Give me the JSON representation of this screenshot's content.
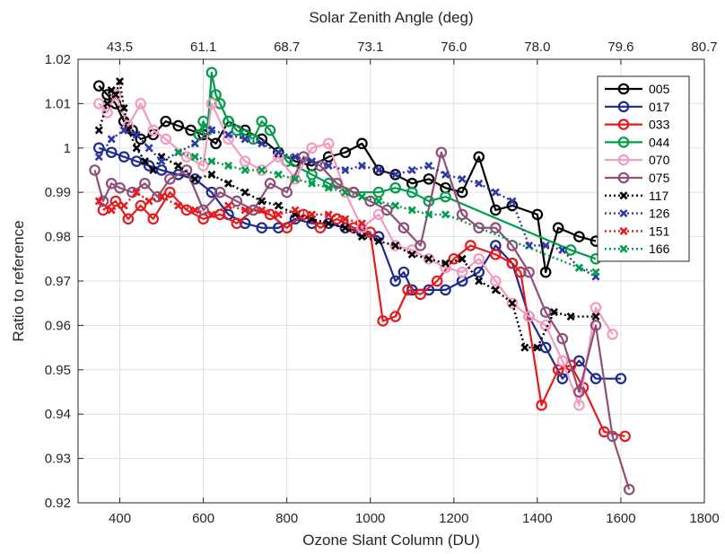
{
  "chart_data": {
    "type": "line",
    "xlabel": "Ozone Slant Column (DU)",
    "ylabel": "Ratio to reference",
    "top_xlabel": "Solar Zenith Angle (deg)",
    "xlim": [
      300,
      1800
    ],
    "ylim": [
      0.92,
      1.02
    ],
    "xticks": [
      400,
      600,
      800,
      1000,
      1200,
      1400,
      1600,
      1800
    ],
    "yticks": [
      0.92,
      0.93,
      0.94,
      0.95,
      0.96,
      0.97,
      0.98,
      0.99,
      1,
      1.01,
      1.02
    ],
    "ytick_labels": [
      "0.92",
      "0.93",
      "0.94",
      "0.95",
      "0.96",
      "0.97",
      "0.98",
      "0.99",
      "1",
      "1.01",
      "1.02"
    ],
    "top_ticks": [
      {
        "x": 400,
        "label": "43.5"
      },
      {
        "x": 600,
        "label": "61.1"
      },
      {
        "x": 800,
        "label": "68.7"
      },
      {
        "x": 1000,
        "label": "73.1"
      },
      {
        "x": 1200,
        "label": "76.0"
      },
      {
        "x": 1400,
        "label": "78.0"
      },
      {
        "x": 1600,
        "label": "79.6"
      },
      {
        "x": 1800,
        "label": "80.7"
      }
    ],
    "grid": true,
    "legend_position": "top-right",
    "series": [
      {
        "name": "005",
        "color": "#000000",
        "marker": "o",
        "line": "solid",
        "x": [
          350,
          370,
          390,
          410,
          430,
          450,
          480,
          510,
          540,
          570,
          600,
          630,
          660,
          700,
          740,
          780,
          820,
          860,
          900,
          940,
          980,
          1020,
          1060,
          1100,
          1140,
          1180,
          1220,
          1260,
          1300,
          1340,
          1400,
          1420,
          1450,
          1500,
          1540
        ],
        "y": [
          1.014,
          1.012,
          1.01,
          1.006,
          1.004,
          1.002,
          1.003,
          1.006,
          1.005,
          1.004,
          1.003,
          1.001,
          1.006,
          1.004,
          1.002,
          0.999,
          0.997,
          0.996,
          0.998,
          0.999,
          1.001,
          0.995,
          0.994,
          0.992,
          0.993,
          0.991,
          0.99,
          0.998,
          0.986,
          0.987,
          0.985,
          0.972,
          0.982,
          0.98,
          0.979
        ]
      },
      {
        "name": "017",
        "color": "#1f2a8f",
        "marker": "o",
        "line": "solid",
        "x": [
          350,
          380,
          410,
          440,
          470,
          500,
          540,
          580,
          620,
          660,
          700,
          740,
          780,
          820,
          860,
          900,
          940,
          980,
          1020,
          1060,
          1080,
          1100,
          1140,
          1180,
          1220,
          1260,
          1300,
          1340,
          1380,
          1420,
          1460,
          1500,
          1540,
          1600
        ],
        "y": [
          1.0,
          0.999,
          0.998,
          0.997,
          0.996,
          0.995,
          0.994,
          0.993,
          0.99,
          0.985,
          0.983,
          0.982,
          0.982,
          0.984,
          0.983,
          0.983,
          0.982,
          0.981,
          0.98,
          0.97,
          0.972,
          0.968,
          0.968,
          0.968,
          0.97,
          0.972,
          0.978,
          0.974,
          0.962,
          0.955,
          0.948,
          0.952,
          0.948,
          0.948
        ]
      },
      {
        "name": "033",
        "color": "#e41a1c",
        "marker": "o",
        "line": "solid",
        "x": [
          360,
          390,
          420,
          450,
          480,
          520,
          560,
          600,
          640,
          680,
          720,
          760,
          800,
          840,
          880,
          920,
          960,
          1000,
          1030,
          1060,
          1090,
          1120,
          1160,
          1200,
          1240,
          1300,
          1340,
          1360,
          1410,
          1450,
          1480,
          1510,
          1560,
          1610
        ],
        "y": [
          0.986,
          0.988,
          0.984,
          0.987,
          0.984,
          0.99,
          0.986,
          0.984,
          0.985,
          0.983,
          0.986,
          0.985,
          0.982,
          0.985,
          0.982,
          0.984,
          0.982,
          0.981,
          0.961,
          0.962,
          0.968,
          0.967,
          0.97,
          0.975,
          0.978,
          0.976,
          0.974,
          0.972,
          0.942,
          0.95,
          0.951,
          0.946,
          0.936,
          0.935
        ]
      },
      {
        "name": "044",
        "color": "#009e4a",
        "marker": "o",
        "line": "solid",
        "x": [
          590,
          600,
          610,
          620,
          630,
          640,
          660,
          680,
          700,
          720,
          740,
          760,
          800,
          860,
          900,
          960,
          1020,
          1060,
          1100,
          1140,
          1180,
          1480,
          1540
        ],
        "y": [
          1.003,
          1.006,
          1.004,
          1.017,
          1.012,
          1.01,
          1.006,
          1.004,
          1.003,
          1.002,
          1.006,
          1.004,
          0.997,
          0.994,
          0.992,
          0.99,
          0.99,
          0.991,
          0.99,
          0.988,
          0.989,
          0.977,
          0.975
        ]
      },
      {
        "name": "070",
        "color": "#f49ac1",
        "marker": "o",
        "line": "solid",
        "x": [
          350,
          370,
          390,
          420,
          450,
          480,
          510,
          560,
          600,
          620,
          660,
          700,
          740,
          780,
          820,
          860,
          900,
          940,
          980,
          1020,
          1060,
          1100,
          1140,
          1180,
          1220,
          1260,
          1300,
          1340,
          1380,
          1420,
          1460,
          1500,
          1540,
          1580
        ],
        "y": [
          1.01,
          1.008,
          1.012,
          1.005,
          1.01,
          1.004,
          1.002,
          0.998,
          0.996,
          1.01,
          1.002,
          0.997,
          0.995,
          0.998,
          0.993,
          1.0,
          1.001,
          0.99,
          0.982,
          0.985,
          0.978,
          0.977,
          0.975,
          0.973,
          0.972,
          0.975,
          0.97,
          0.965,
          0.962,
          0.96,
          0.952,
          0.942,
          0.964,
          0.958
        ]
      },
      {
        "name": "075",
        "color": "#8e4f78",
        "marker": "o",
        "line": "solid",
        "x": [
          340,
          360,
          380,
          400,
          430,
          460,
          490,
          520,
          560,
          600,
          640,
          680,
          720,
          760,
          800,
          840,
          880,
          920,
          960,
          1000,
          1040,
          1080,
          1120,
          1170,
          1220,
          1260,
          1300,
          1340,
          1380,
          1420,
          1460,
          1500,
          1540,
          1580,
          1620
        ],
        "y": [
          0.995,
          0.988,
          0.992,
          0.991,
          0.99,
          0.992,
          0.989,
          0.993,
          0.995,
          0.986,
          0.99,
          0.988,
          0.986,
          0.992,
          0.99,
          0.998,
          0.996,
          0.992,
          0.99,
          0.988,
          0.986,
          0.982,
          0.978,
          0.999,
          0.985,
          0.982,
          0.982,
          0.978,
          0.972,
          0.963,
          0.957,
          0.945,
          0.96,
          0.935,
          0.923
        ]
      },
      {
        "name": "117",
        "color": "#000000",
        "marker": "x",
        "line": "dotted",
        "x": [
          350,
          370,
          380,
          390,
          400,
          410,
          420,
          440,
          460,
          480,
          500,
          540,
          580,
          620,
          660,
          700,
          740,
          780,
          820,
          860,
          900,
          940,
          980,
          1020,
          1060,
          1100,
          1140,
          1180,
          1220,
          1260,
          1300,
          1340,
          1370,
          1400,
          1440,
          1480,
          1540
        ],
        "y": [
          1.004,
          1.01,
          1.013,
          1.012,
          1.015,
          1.009,
          1.004,
          1.0,
          0.997,
          0.995,
          0.998,
          0.996,
          0.993,
          0.994,
          0.992,
          0.99,
          0.988,
          0.987,
          0.985,
          0.984,
          0.983,
          0.982,
          0.98,
          0.979,
          0.978,
          0.976,
          0.975,
          0.974,
          0.975,
          0.97,
          0.968,
          0.965,
          0.955,
          0.955,
          0.963,
          0.962,
          0.962
        ]
      },
      {
        "name": "126",
        "color": "#2d3aa6",
        "marker": "x",
        "line": "dotted",
        "x": [
          350,
          380,
          410,
          440,
          470,
          500,
          540,
          580,
          620,
          660,
          700,
          740,
          780,
          820,
          860,
          900,
          940,
          980,
          1020,
          1060,
          1100,
          1140,
          1180,
          1220,
          1260,
          1300,
          1340,
          1380,
          1420,
          1460,
          1500,
          1540
        ],
        "y": [
          0.998,
          1.002,
          1.004,
          1.003,
          1.0,
          0.997,
          0.999,
          1.001,
          1.004,
          1.003,
          1.002,
          1.001,
          0.999,
          0.998,
          0.997,
          0.996,
          0.995,
          0.996,
          0.995,
          0.994,
          0.995,
          0.996,
          0.994,
          0.993,
          0.992,
          0.99,
          0.988,
          0.978,
          0.978,
          0.977,
          0.973,
          0.971
        ]
      },
      {
        "name": "151",
        "color": "#e41a1c",
        "marker": "x",
        "line": "dotted",
        "x": [
          350,
          380,
          410,
          440,
          470,
          500,
          540,
          580,
          620,
          660,
          700,
          740,
          780,
          820,
          860,
          900,
          940,
          980
        ],
        "y": [
          0.988,
          0.986,
          0.987,
          0.99,
          0.988,
          0.989,
          0.987,
          0.986,
          0.985,
          0.987,
          0.986,
          0.986,
          0.985,
          0.986,
          0.985,
          0.985,
          0.984,
          0.983
        ]
      },
      {
        "name": "166",
        "color": "#009e4a",
        "marker": "x",
        "line": "dotted",
        "x": [
          540,
          580,
          620,
          660,
          700,
          740,
          780,
          820,
          860,
          900,
          940,
          980,
          1020,
          1060,
          1100,
          1140,
          1180,
          1500,
          1540
        ],
        "y": [
          0.999,
          0.998,
          0.997,
          0.996,
          0.995,
          0.995,
          0.994,
          0.993,
          0.992,
          0.991,
          0.99,
          0.989,
          0.988,
          0.987,
          0.986,
          0.985,
          0.985,
          0.973,
          0.972
        ]
      }
    ]
  }
}
